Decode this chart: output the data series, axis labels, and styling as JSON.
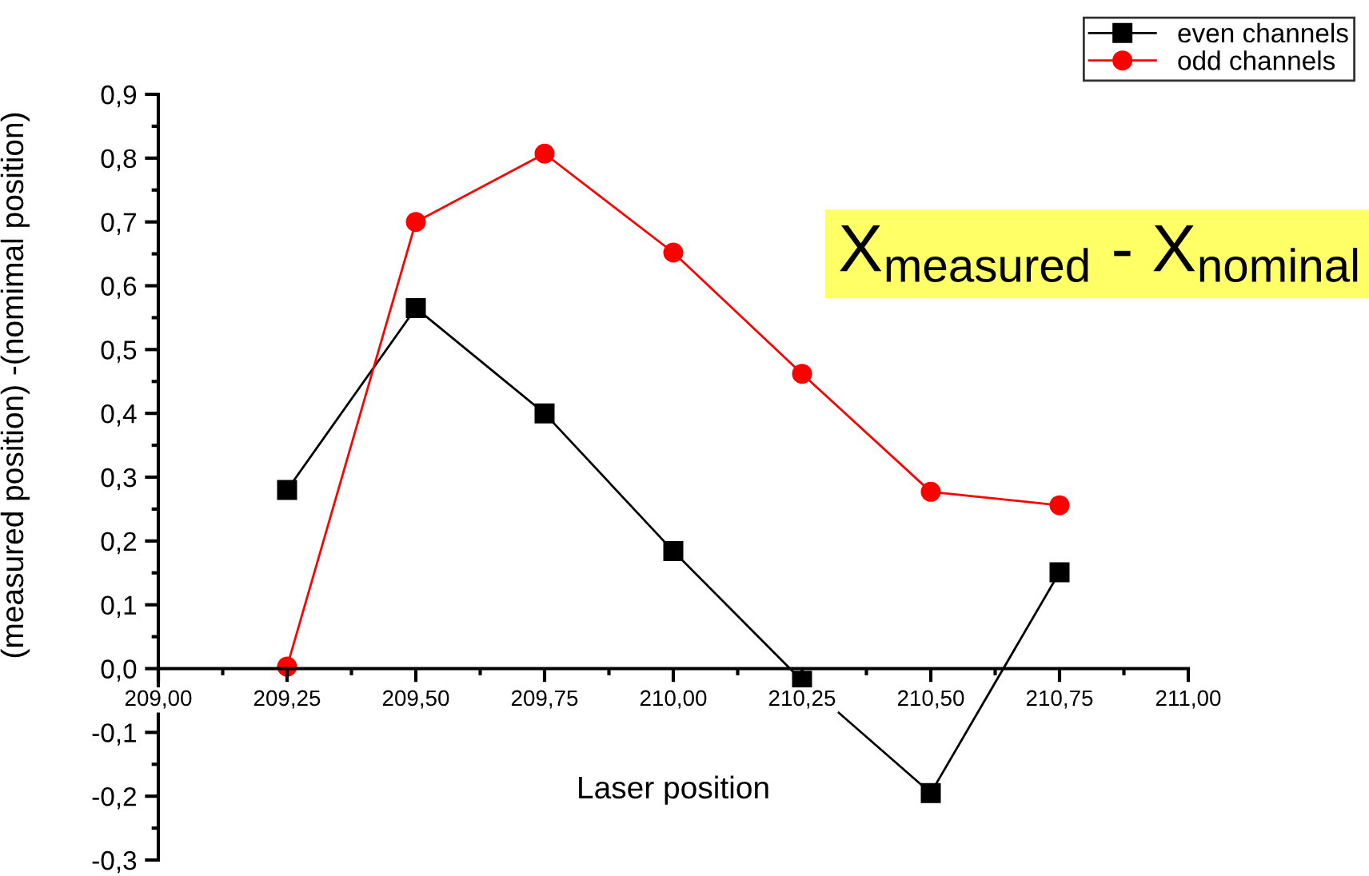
{
  "chart_data": {
    "type": "line",
    "xlabel": "Laser position",
    "ylabel": "(measured position) -(nomimal position)",
    "x": [
      209.25,
      209.5,
      209.75,
      210.0,
      210.25,
      210.5,
      210.75
    ],
    "series": [
      {
        "name": "even channels",
        "color": "#000000",
        "marker": "square",
        "values": [
          0.28,
          0.565,
          0.4,
          0.184,
          -0.019,
          -0.195,
          0.151
        ]
      },
      {
        "name": "odd channels",
        "color": "#ff0000",
        "marker": "circle",
        "values": [
          0.003,
          0.7,
          0.807,
          0.652,
          0.462,
          0.277,
          0.256
        ]
      }
    ],
    "xlim": [
      209.0,
      211.0
    ],
    "xticks": [
      {
        "value": 209.0,
        "label": "209,00"
      },
      {
        "value": 209.25,
        "label": "209,25"
      },
      {
        "value": 209.5,
        "label": "209,50"
      },
      {
        "value": 209.75,
        "label": "209,75"
      },
      {
        "value": 210.0,
        "label": "210,00"
      },
      {
        "value": 210.25,
        "label": "210,25"
      },
      {
        "value": 210.5,
        "label": "210,50"
      },
      {
        "value": 210.75,
        "label": "210,75"
      },
      {
        "value": 211.0,
        "label": "211,00"
      }
    ],
    "ylim": [
      -0.3,
      0.9
    ],
    "yticks": [
      {
        "value": -0.3,
        "label": "-0,3"
      },
      {
        "value": -0.2,
        "label": "-0,2"
      },
      {
        "value": -0.1,
        "label": "-0,1"
      },
      {
        "value": 0.0,
        "label": "0,0"
      },
      {
        "value": 0.1,
        "label": "0,1"
      },
      {
        "value": 0.2,
        "label": "0,2"
      },
      {
        "value": 0.3,
        "label": "0,3"
      },
      {
        "value": 0.4,
        "label": "0,4"
      },
      {
        "value": 0.5,
        "label": "0,5"
      },
      {
        "value": 0.6,
        "label": "0,6"
      },
      {
        "value": 0.7,
        "label": "0,7"
      },
      {
        "value": 0.8,
        "label": "0,8"
      },
      {
        "value": 0.9,
        "label": "0,9"
      }
    ],
    "annotations": [
      "X$_{measured}$ - X$_{nominal}$"
    ],
    "legend": "top right",
    "grid": false,
    "line_style": "solid"
  }
}
